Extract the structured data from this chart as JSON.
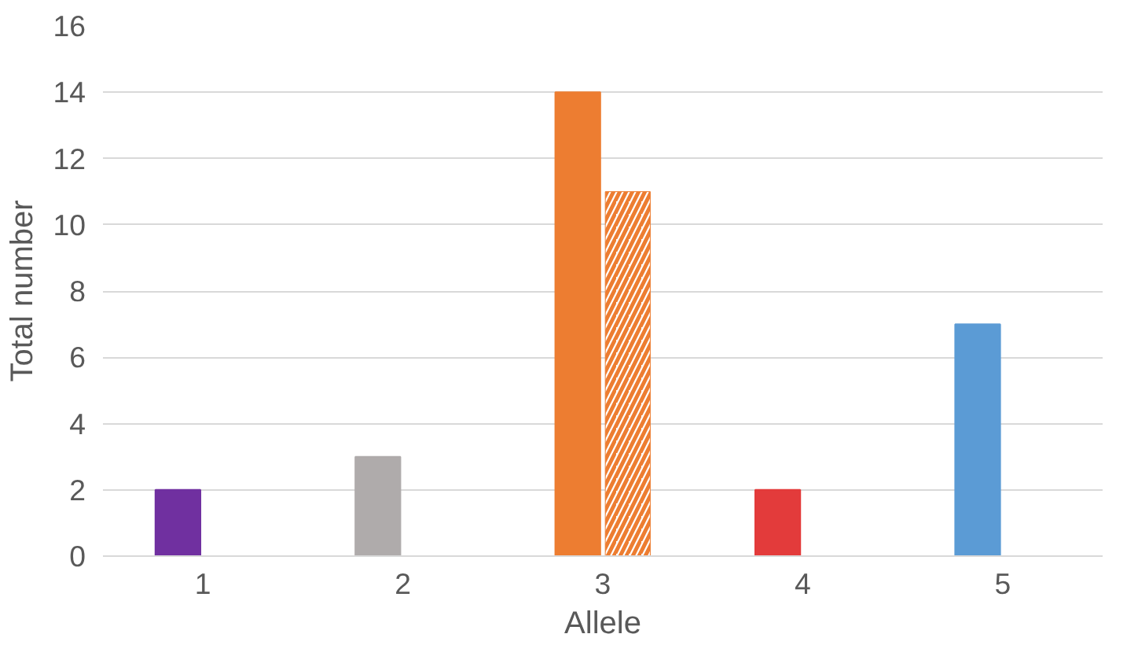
{
  "chart_data": {
    "type": "bar",
    "xlabel": "Allele",
    "ylabel": "Total number",
    "categories": [
      "1",
      "2",
      "3",
      "4",
      "5"
    ],
    "series": [
      {
        "colors": [
          "#7030a0",
          "#afabab",
          "#ed7d31",
          "#e33b3b",
          "#5b9bd5"
        ],
        "values": [
          2,
          3,
          14,
          2,
          7
        ]
      },
      {
        "color": "#ed7d31",
        "values": [
          null,
          null,
          11,
          null,
          null
        ]
      }
    ],
    "ylim": [
      0,
      16
    ],
    "yticks": [
      0,
      2,
      4,
      6,
      8,
      10,
      12,
      14,
      16
    ],
    "grid": "y"
  }
}
